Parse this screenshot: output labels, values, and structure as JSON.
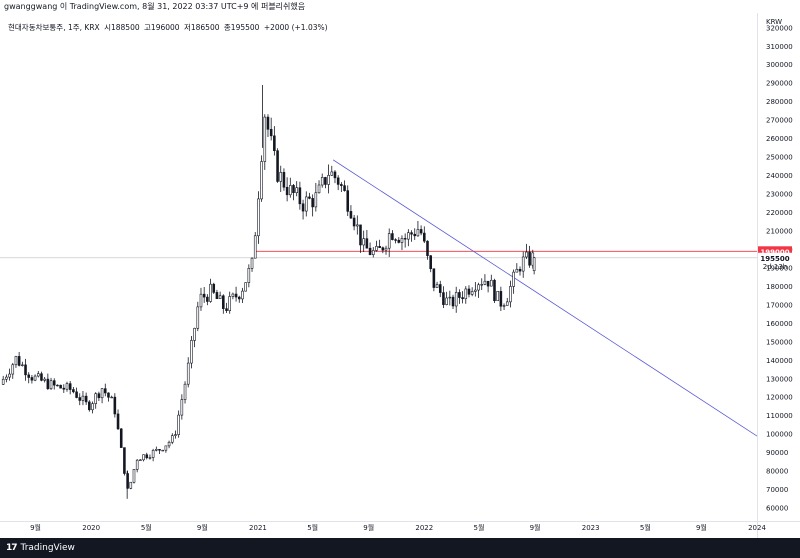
{
  "header": {
    "publish_line": "gwanggwang 이 TradingView.com, 8월 31, 2022 03:37 UTC+9 에 퍼블리쉬했음"
  },
  "legend": {
    "symbol": "현대자동차보통주, 1주, KRX",
    "open_label": "시",
    "open_value": "188500",
    "high_label": "고",
    "high_value": "196000",
    "low_label": "저",
    "low_value": "186500",
    "close_label": "종",
    "close_value": "195500",
    "change": "+2000 (+1.03%)"
  },
  "footer": {
    "logo_mark": "17",
    "brand": "TradingView"
  },
  "colors": {
    "candle": "#131722",
    "resistance_line": "#f23645",
    "trend_line": "#5b5bd6",
    "grid_line": "#c9c9c9",
    "footer_bg": "#131722"
  },
  "chart_data": {
    "type": "candlestick",
    "currency_label": "KRW",
    "y_ticks": [
      60000,
      70000,
      80000,
      90000,
      100000,
      110000,
      120000,
      130000,
      140000,
      150000,
      160000,
      170000,
      180000,
      190000,
      200000,
      210000,
      220000,
      230000,
      240000,
      250000,
      260000,
      270000,
      280000,
      290000,
      300000,
      310000,
      320000
    ],
    "ylim": [
      53000,
      328000
    ],
    "x_ticks": [
      {
        "label": "9월",
        "date": "2019-09-01"
      },
      {
        "label": "2020",
        "date": "2020-01-01"
      },
      {
        "label": "5월",
        "date": "2020-05-01"
      },
      {
        "label": "9월",
        "date": "2020-09-01"
      },
      {
        "label": "2021",
        "date": "2021-01-01"
      },
      {
        "label": "5월",
        "date": "2021-05-01"
      },
      {
        "label": "9월",
        "date": "2021-09-01"
      },
      {
        "label": "2022",
        "date": "2022-01-01"
      },
      {
        "label": "5월",
        "date": "2022-05-01"
      },
      {
        "label": "9월",
        "date": "2022-09-01"
      },
      {
        "label": "2023",
        "date": "2023-01-01"
      },
      {
        "label": "5월",
        "date": "2023-05-01"
      },
      {
        "label": "9월",
        "date": "2023-09-01"
      },
      {
        "label": "2024",
        "date": "2024-01-01"
      }
    ],
    "xlim": [
      "2019-06-15",
      "2024-01-01"
    ],
    "anchors": [
      [
        "2019-06-15",
        127000
      ],
      [
        "2019-07-20",
        141000
      ],
      [
        "2019-08-25",
        131000
      ],
      [
        "2019-10-10",
        126000
      ],
      [
        "2019-11-20",
        124000
      ],
      [
        "2019-12-25",
        115000
      ],
      [
        "2020-01-25",
        125000
      ],
      [
        "2020-02-20",
        116000
      ],
      [
        "2020-03-22",
        68000
      ],
      [
        "2020-04-10",
        87000
      ],
      [
        "2020-05-25",
        91000
      ],
      [
        "2020-07-01",
        98000
      ],
      [
        "2020-07-31",
        135000
      ],
      [
        "2020-08-25",
        173000
      ],
      [
        "2020-09-20",
        177000
      ],
      [
        "2020-10-20",
        168000
      ],
      [
        "2020-11-25",
        178000
      ],
      [
        "2020-12-20",
        192000
      ],
      [
        "2021-01-08",
        250000
      ],
      [
        "2021-01-15",
        275000
      ],
      [
        "2021-02-10",
        243000
      ],
      [
        "2021-03-10",
        232000
      ],
      [
        "2021-04-10",
        225000
      ],
      [
        "2021-05-10",
        228000
      ],
      [
        "2021-06-05",
        242000
      ],
      [
        "2021-06-25",
        238000
      ],
      [
        "2021-07-25",
        222000
      ],
      [
        "2021-08-20",
        201000
      ],
      [
        "2021-09-20",
        197000
      ],
      [
        "2021-10-20",
        210000
      ],
      [
        "2021-11-20",
        206000
      ],
      [
        "2021-12-22",
        212000
      ],
      [
        "2022-01-20",
        182000
      ],
      [
        "2022-02-25",
        170000
      ],
      [
        "2022-03-25",
        176000
      ],
      [
        "2022-04-25",
        183000
      ],
      [
        "2022-05-20",
        184000
      ],
      [
        "2022-06-15",
        171000
      ],
      [
        "2022-06-30",
        174000
      ],
      [
        "2022-07-15",
        183000
      ],
      [
        "2022-08-01",
        193000
      ],
      [
        "2022-08-30",
        195500
      ]
    ],
    "last_candle": {
      "open": 188500,
      "high": 196000,
      "low": 186500,
      "close": 195500
    },
    "horizontal_line": {
      "value": 199000,
      "label": "199000"
    },
    "current_price": {
      "value": 195500,
      "label": "195500",
      "countdown": "2d 13h"
    },
    "trend_line": {
      "from": [
        "2021-06-15",
        248500
      ],
      "to": [
        "2024-01-01",
        99000
      ]
    }
  }
}
